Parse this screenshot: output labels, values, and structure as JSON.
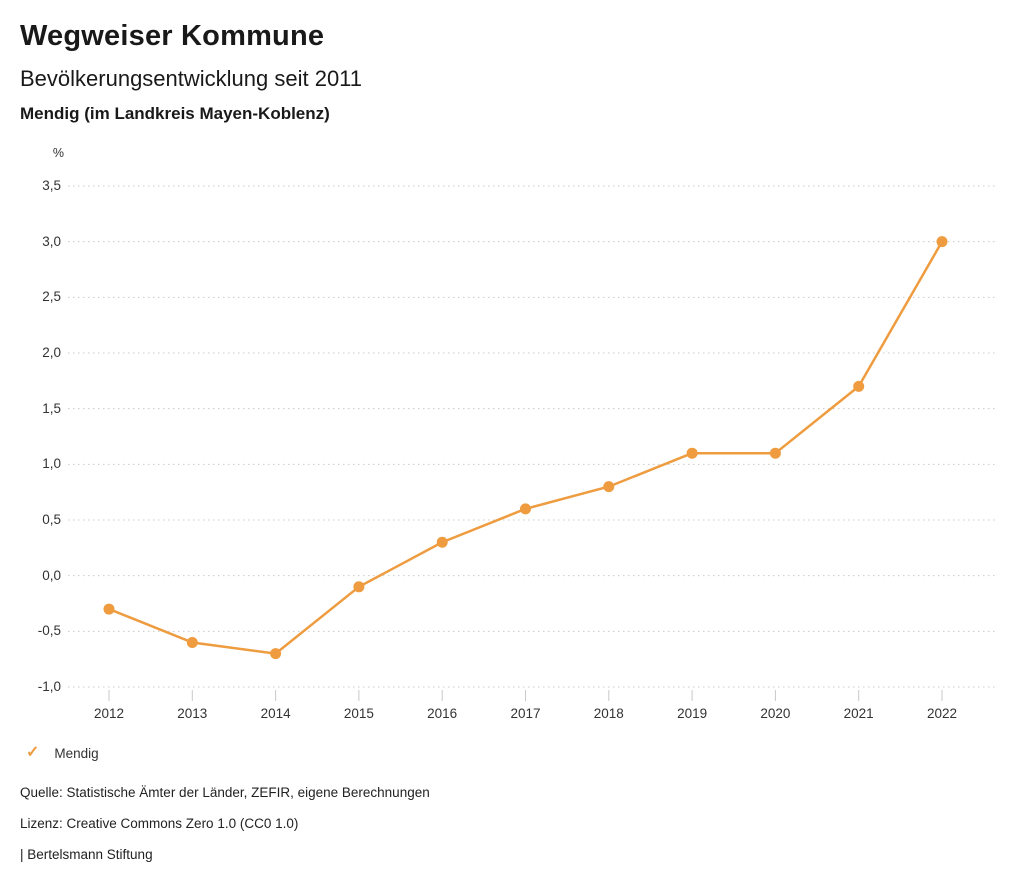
{
  "header": {
    "title": "Wegweiser Kommune",
    "subtitle": "Bevölkerungsentwicklung seit 2011",
    "region": "Mendig (im Landkreis Mayen-Koblenz)"
  },
  "chart_data": {
    "type": "line",
    "title": "Bevölkerungsentwicklung seit 2011",
    "subtitle": "Mendig (im Landkreis Mayen-Koblenz)",
    "unit_label": "%",
    "xlabel": "",
    "ylabel": "%",
    "x": [
      "2012",
      "2013",
      "2014",
      "2015",
      "2016",
      "2017",
      "2018",
      "2019",
      "2020",
      "2021",
      "2022"
    ],
    "series": [
      {
        "name": "Mendig",
        "color": "#ee9c3f",
        "values": [
          -0.3,
          -0.6,
          -0.7,
          -0.1,
          0.3,
          0.6,
          0.8,
          1.1,
          1.1,
          1.7,
          3.0
        ]
      }
    ],
    "ylim": [
      -1.0,
      3.5
    ],
    "yticks": [
      {
        "label": "3,5",
        "value": 3.5
      },
      {
        "label": "3,0",
        "value": 3.0
      },
      {
        "label": "2,5",
        "value": 2.5
      },
      {
        "label": "2,0",
        "value": 2.0
      },
      {
        "label": "1,5",
        "value": 1.5
      },
      {
        "label": "1,0",
        "value": 1.0
      },
      {
        "label": "0,5",
        "value": 0.5
      },
      {
        "label": "0,0",
        "value": 0.0
      },
      {
        "label": "-0,5",
        "value": -0.5
      },
      {
        "label": "-1,0",
        "value": -1.0
      }
    ],
    "grid": "horizontal-dotted",
    "legend_position": "bottom-left"
  },
  "legend": {
    "check_icon": "✓",
    "label": "Mendig"
  },
  "footer": {
    "source": "Quelle: Statistische Ämter der Länder, ZEFIR, eigene Berechnungen",
    "license": "Lizenz: Creative Commons Zero 1.0 (CC0 1.0)",
    "attribution": "| Bertelsmann Stiftung"
  },
  "colors": {
    "accent": "#ee9c3f",
    "grid": "#c9c9c9",
    "tick": "#c9c9c9",
    "axis_text": "#333333",
    "heading_text": "#191919",
    "background": "#ffffff"
  }
}
